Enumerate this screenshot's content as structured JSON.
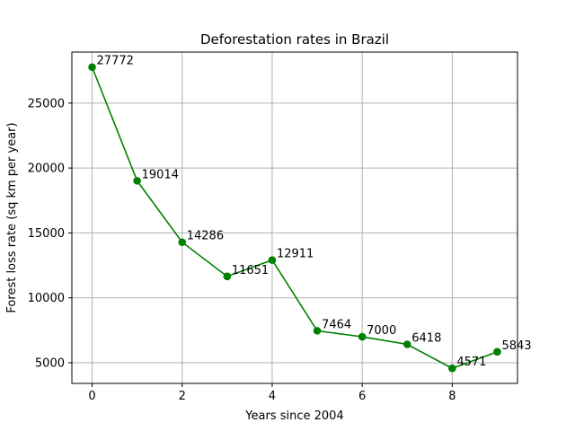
{
  "chart_data": {
    "type": "line",
    "title": "Deforestation rates in Brazil",
    "xlabel": "Years since 2004",
    "ylabel": "Forest loss rate (sq km per year)",
    "x": [
      0,
      1,
      2,
      3,
      4,
      5,
      6,
      7,
      8,
      9
    ],
    "series": [
      {
        "values": [
          27772,
          19014,
          14286,
          11651,
          12911,
          7464,
          7000,
          6418,
          4571,
          5843
        ],
        "color": "#008000",
        "marker": "circle"
      }
    ],
    "data_labels": [
      "27772",
      "19014",
      "14286",
      "11651",
      "12911",
      "7464",
      "7000",
      "6418",
      "4571",
      "5843"
    ],
    "xlim": [
      -0.45,
      9.45
    ],
    "ylim": [
      3410,
      28930
    ],
    "xticks": [
      0,
      2,
      4,
      6,
      8
    ],
    "xtick_labels": [
      "0",
      "2",
      "4",
      "6",
      "8"
    ],
    "yticks": [
      5000,
      10000,
      15000,
      20000,
      25000
    ],
    "ytick_labels": [
      "5000",
      "10000",
      "15000",
      "20000",
      "25000"
    ],
    "grid": true,
    "legend": "none"
  }
}
